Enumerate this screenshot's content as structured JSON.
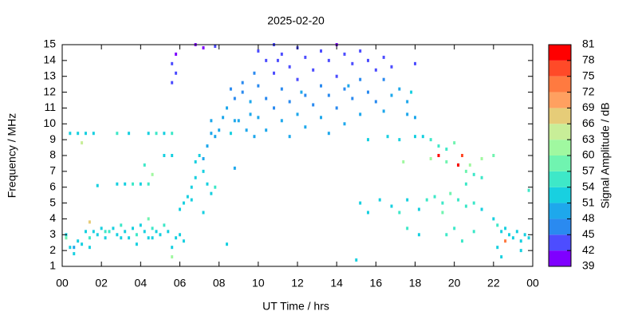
{
  "chart_data": {
    "type": "scatter",
    "title": "2025-02-20",
    "x_label": "UT Time / hrs",
    "y_label": "Frequency / MHz",
    "xlim": [
      0,
      24
    ],
    "xticks": [
      {
        "value": 0,
        "label": "00"
      },
      {
        "value": 2,
        "label": "02"
      },
      {
        "value": 4,
        "label": "04"
      },
      {
        "value": 6,
        "label": "06"
      },
      {
        "value": 8,
        "label": "08"
      },
      10,
      12,
      14,
      16,
      18,
      20,
      22,
      {
        "value": 24,
        "label": "00"
      }
    ],
    "ylim": [
      1,
      15
    ],
    "yticks": [
      1,
      2,
      3,
      4,
      5,
      6,
      7,
      8,
      9,
      10,
      11,
      12,
      13,
      14,
      15
    ],
    "colorbar": {
      "label": "Signal Amplitude / dB",
      "lim": [
        39,
        81
      ],
      "ticks": [
        39,
        42,
        45,
        48,
        51,
        54,
        57,
        60,
        63,
        66,
        69,
        72,
        75,
        78,
        81
      ],
      "colors": [
        "#7f00ff",
        "#4d4dff",
        "#2a8af0",
        "#1ea8ec",
        "#18d0e0",
        "#3ee8c8",
        "#70f4b0",
        "#a0f8a0",
        "#c8ee98",
        "#e6cc78",
        "#ffa060",
        "#ff7a40",
        "#ff4a28",
        "#ff0000"
      ]
    },
    "points": [
      [
        0.2,
        3,
        52
      ],
      [
        0.4,
        2.2,
        51
      ],
      [
        0.6,
        1.8,
        51
      ],
      [
        0.8,
        2.6,
        52
      ],
      [
        1.0,
        2.4,
        53
      ],
      [
        1.2,
        3.2,
        52
      ],
      [
        1.4,
        2.8,
        54
      ],
      [
        1.6,
        3.2,
        53
      ],
      [
        1.8,
        3.0,
        52
      ],
      [
        2.0,
        3.4,
        53
      ],
      [
        2.2,
        2.8,
        52
      ],
      [
        2.4,
        3.2,
        54
      ],
      [
        2.6,
        3.4,
        53
      ],
      [
        2.8,
        3.0,
        52
      ],
      [
        3.0,
        3.6,
        54
      ],
      [
        3.2,
        3.2,
        53
      ],
      [
        3.4,
        2.8,
        52
      ],
      [
        3.6,
        3.4,
        53
      ],
      [
        3.8,
        3.0,
        54
      ],
      [
        4.0,
        3.6,
        53
      ],
      [
        4.2,
        3.2,
        52
      ],
      [
        4.4,
        2.8,
        53
      ],
      [
        4.6,
        3.4,
        54
      ],
      [
        4.8,
        3.2,
        53
      ],
      [
        5.0,
        3.0,
        52
      ],
      [
        5.2,
        3.6,
        54
      ],
      [
        5.4,
        3.2,
        53
      ],
      [
        5.8,
        2.8,
        52
      ],
      [
        6.0,
        3.0,
        53
      ],
      [
        6.2,
        2.6,
        52
      ],
      [
        0.6,
        2.2,
        50
      ],
      [
        1.4,
        2.2,
        51
      ],
      [
        2.2,
        3.2,
        54
      ],
      [
        3.0,
        2.8,
        53
      ],
      [
        3.8,
        2.4,
        52
      ],
      [
        4.6,
        2.8,
        52
      ],
      [
        5.6,
        2.2,
        51
      ],
      [
        0.2,
        2.8,
        58
      ],
      [
        1.4,
        3.8,
        66
      ],
      [
        4.4,
        4.0,
        58
      ],
      [
        0.4,
        9.4,
        53
      ],
      [
        0.8,
        9.4,
        52
      ],
      [
        1.2,
        9.4,
        53
      ],
      [
        1.6,
        9.4,
        52
      ],
      [
        2.8,
        9.4,
        54
      ],
      [
        3.4,
        9.4,
        53
      ],
      [
        4.4,
        9.4,
        52
      ],
      [
        4.8,
        9.4,
        54
      ],
      [
        5.2,
        9.4,
        53
      ],
      [
        5.6,
        9.4,
        55
      ],
      [
        1.0,
        8.8,
        63
      ],
      [
        2.8,
        6.2,
        53
      ],
      [
        3.2,
        6.2,
        52
      ],
      [
        3.6,
        6.2,
        54
      ],
      [
        4.0,
        6.2,
        53
      ],
      [
        4.4,
        6.2,
        56
      ],
      [
        4.6,
        6.8,
        62
      ],
      [
        1.8,
        6.1,
        52
      ],
      [
        4.2,
        7.4,
        55
      ],
      [
        5.2,
        8.0,
        53
      ],
      [
        5.6,
        8.0,
        52
      ],
      [
        5.6,
        13.8,
        42
      ],
      [
        5.8,
        13.2,
        42
      ],
      [
        5.6,
        12.6,
        42
      ],
      [
        5.8,
        14.4,
        41
      ],
      [
        6.8,
        15,
        41
      ],
      [
        7.8,
        14.9,
        42
      ],
      [
        7.2,
        14.8,
        41
      ],
      [
        6.0,
        4.6,
        51
      ],
      [
        6.2,
        5.0,
        52
      ],
      [
        6.4,
        5.4,
        53
      ],
      [
        6.6,
        6.0,
        52
      ],
      [
        6.8,
        6.6,
        51
      ],
      [
        6.6,
        5.2,
        53
      ],
      [
        6.8,
        7.6,
        52
      ],
      [
        7.0,
        8.0,
        51
      ],
      [
        7.2,
        7.0,
        52
      ],
      [
        7.4,
        6.2,
        53
      ],
      [
        7.6,
        5.6,
        52
      ],
      [
        7.8,
        6.0,
        54
      ],
      [
        7.2,
        7.8,
        50
      ],
      [
        7.4,
        8.6,
        49
      ],
      [
        7.6,
        9.4,
        50
      ],
      [
        7.8,
        9.2,
        49
      ],
      [
        8.0,
        9.6,
        50
      ],
      [
        7.2,
        4.4,
        53
      ],
      [
        8.4,
        2.4,
        51
      ],
      [
        8.8,
        7.2,
        50
      ],
      [
        7.6,
        10.2,
        48
      ],
      [
        8.2,
        10.4,
        49
      ],
      [
        8.4,
        11.0,
        48
      ],
      [
        8.6,
        9.4,
        51
      ],
      [
        8.8,
        11.6,
        47
      ],
      [
        9.0,
        10.2,
        49
      ],
      [
        9.2,
        12.6,
        46
      ],
      [
        9.4,
        9.6,
        50
      ],
      [
        9.6,
        11.4,
        48
      ],
      [
        9.8,
        13.2,
        45
      ],
      [
        9.2,
        12.0,
        47
      ],
      [
        8.6,
        12.2,
        47
      ],
      [
        9.6,
        10.6,
        49
      ],
      [
        9.8,
        9.2,
        50
      ],
      [
        8.8,
        10.2,
        48
      ],
      [
        10.0,
        14.6,
        42
      ],
      [
        10.0,
        12.4,
        45
      ],
      [
        10.0,
        10.4,
        48
      ],
      [
        10.4,
        14.0,
        43
      ],
      [
        10.4,
        11.6,
        46
      ],
      [
        10.4,
        9.6,
        50
      ],
      [
        10.8,
        15.0,
        42
      ],
      [
        10.8,
        13.2,
        44
      ],
      [
        10.8,
        11.0,
        47
      ],
      [
        11.2,
        14.4,
        42
      ],
      [
        11.2,
        12.2,
        45
      ],
      [
        11.2,
        10.2,
        48
      ],
      [
        11.6,
        13.6,
        43
      ],
      [
        11.6,
        11.4,
        46
      ],
      [
        11.6,
        9.2,
        50
      ],
      [
        12.0,
        14.8,
        42
      ],
      [
        12.0,
        12.8,
        44
      ],
      [
        12.0,
        10.6,
        48
      ],
      [
        12.4,
        14.2,
        42
      ],
      [
        12.4,
        11.8,
        45
      ],
      [
        12.4,
        9.8,
        49
      ],
      [
        12.8,
        13.4,
        43
      ],
      [
        12.8,
        11.2,
        47
      ],
      [
        13.2,
        14.6,
        42
      ],
      [
        13.2,
        12.4,
        45
      ],
      [
        13.2,
        10.4,
        48
      ],
      [
        13.6,
        14.0,
        42
      ],
      [
        13.6,
        11.8,
        46
      ],
      [
        13.6,
        9.4,
        50
      ],
      [
        14.0,
        15.0,
        41
      ],
      [
        14.0,
        13.0,
        44
      ],
      [
        14.0,
        11.0,
        47
      ],
      [
        14.4,
        14.4,
        42
      ],
      [
        14.4,
        12.2,
        45
      ],
      [
        14.4,
        10.0,
        49
      ],
      [
        14.8,
        13.8,
        43
      ],
      [
        14.8,
        11.6,
        46
      ],
      [
        15.2,
        14.6,
        42
      ],
      [
        15.2,
        12.8,
        45
      ],
      [
        15.2,
        10.6,
        48
      ],
      [
        15.6,
        14.0,
        43
      ],
      [
        15.6,
        12.0,
        46
      ],
      [
        15.6,
        9.0,
        51
      ],
      [
        16.0,
        13.4,
        44
      ],
      [
        16.0,
        11.4,
        47
      ],
      [
        12.2,
        12.0,
        48
      ],
      [
        14.6,
        12.4,
        50
      ],
      [
        11.0,
        14.0,
        43
      ],
      [
        16.4,
        12.8,
        46
      ],
      [
        16.4,
        10.8,
        49
      ],
      [
        16.8,
        13.6,
        44
      ],
      [
        16.8,
        11.8,
        48
      ],
      [
        17.2,
        12.2,
        50
      ],
      [
        17.2,
        9.0,
        52
      ],
      [
        17.6,
        11.4,
        49
      ],
      [
        17.6,
        10.6,
        50
      ],
      [
        18.0,
        10.4,
        50
      ],
      [
        18.0,
        9.2,
        53
      ],
      [
        16.6,
        9.2,
        52
      ],
      [
        17.8,
        12.0,
        52
      ],
      [
        18.0,
        13.8,
        43
      ],
      [
        16.4,
        14.2,
        42
      ],
      [
        18.4,
        9.2,
        53
      ],
      [
        18.8,
        9.0,
        54
      ],
      [
        19.2,
        8.6,
        55
      ],
      [
        19.6,
        8.4,
        56
      ],
      [
        20.0,
        8.8,
        57
      ],
      [
        18.8,
        7.8,
        60
      ],
      [
        19.2,
        8.0,
        78
      ],
      [
        19.6,
        7.6,
        58
      ],
      [
        20.2,
        7.4,
        59
      ],
      [
        20.6,
        7.0,
        57
      ],
      [
        21.0,
        6.8,
        56
      ],
      [
        21.4,
        6.6,
        55
      ],
      [
        20.4,
        8.0,
        75
      ],
      [
        18.6,
        5.2,
        54
      ],
      [
        19.0,
        5.4,
        55
      ],
      [
        19.4,
        5.0,
        56
      ],
      [
        19.8,
        5.6,
        57
      ],
      [
        20.2,
        5.2,
        55
      ],
      [
        20.6,
        4.8,
        56
      ],
      [
        21.0,
        5.0,
        54
      ],
      [
        21.4,
        4.6,
        53
      ],
      [
        18.2,
        4.6,
        53
      ],
      [
        17.6,
        5.2,
        52
      ],
      [
        17.2,
        4.4,
        54
      ],
      [
        16.8,
        4.8,
        53
      ],
      [
        16.2,
        5.2,
        52
      ],
      [
        15.6,
        4.4,
        51
      ],
      [
        15.2,
        5.0,
        52
      ],
      [
        19.6,
        3.0,
        55
      ],
      [
        20.0,
        3.4,
        56
      ],
      [
        20.4,
        2.6,
        55
      ],
      [
        18.2,
        3.0,
        53
      ],
      [
        17.6,
        3.4,
        56
      ],
      [
        21.0,
        3.2,
        54
      ],
      [
        20.8,
        7.4,
        62
      ],
      [
        21.4,
        7.8,
        60
      ],
      [
        22.0,
        8.0,
        59
      ],
      [
        17.4,
        7.6,
        61
      ],
      [
        19.4,
        4.4,
        58
      ],
      [
        20.6,
        6.2,
        55
      ],
      [
        20.2,
        7.4,
        80
      ],
      [
        22.0,
        4.0,
        53
      ],
      [
        22.2,
        3.6,
        54
      ],
      [
        22.4,
        3.2,
        53
      ],
      [
        22.6,
        3.4,
        52
      ],
      [
        22.8,
        3.0,
        53
      ],
      [
        23.0,
        2.8,
        52
      ],
      [
        23.2,
        3.2,
        53
      ],
      [
        23.4,
        2.6,
        52
      ],
      [
        23.6,
        3.0,
        53
      ],
      [
        23.8,
        2.8,
        52
      ],
      [
        22.6,
        2.6,
        72
      ],
      [
        22.2,
        2.2,
        53
      ],
      [
        23.4,
        2.0,
        52
      ],
      [
        23.8,
        5.8,
        54
      ],
      [
        15.0,
        1.4,
        53
      ],
      [
        5.6,
        1.6,
        61
      ],
      [
        22.4,
        1.6,
        52
      ]
    ]
  }
}
